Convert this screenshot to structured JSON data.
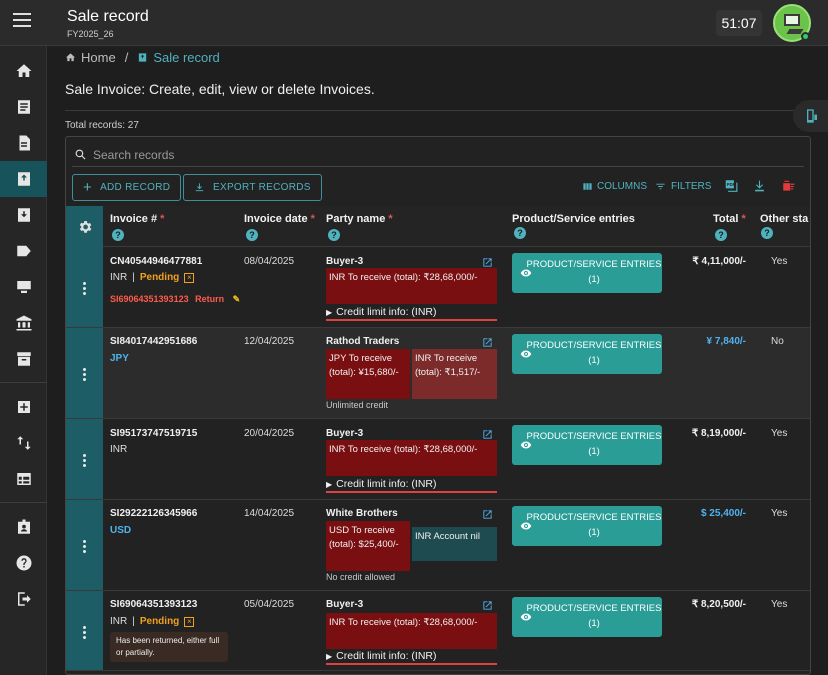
{
  "header": {
    "title": "Sale record",
    "subtitle": "FY2025_26",
    "clock": "51:07"
  },
  "breadcrumb": {
    "home": "Home",
    "sep": "/",
    "current": "Sale record"
  },
  "page": {
    "heading": "Sale Invoice: Create, edit, view or delete Invoices.",
    "total_records": "Total records: 27"
  },
  "search": {
    "placeholder": "Search records"
  },
  "actions": {
    "add": "ADD RECORD",
    "export": "EXPORT RECORDS",
    "columns": "COLUMNS",
    "filters": "FILTERS"
  },
  "columns": {
    "invoice": "Invoice #",
    "date": "Invoice date",
    "party": "Party name",
    "entries": "Product/Service entries",
    "total": "Total",
    "other": "Other sta",
    "required": "*",
    "help": "?"
  },
  "rows": [
    {
      "invoice": "CN40544946477881",
      "currency": "INR",
      "sep": "|",
      "status": "Pending",
      "ref": "SI69064351393123",
      "ref_type": "Return",
      "date": "08/04/2025",
      "party": "Buyer-3",
      "receive1": "INR To receive (total): ₹28,68,000/-",
      "credit_label": "Credit limit info: (INR)",
      "entries": "PRODUCT/SERVICE ENTRIES (1)",
      "total": "₹ 4,11,000/-",
      "other": "Yes"
    },
    {
      "invoice": "SI84017442951686",
      "currency": "JPY",
      "date": "12/04/2025",
      "party": "Rathod Traders",
      "receive1": "JPY To receive (total): ¥15,680/-",
      "receive2": "INR To receive (total): ₹1,517/-",
      "credit_note": "Unlimited credit",
      "entries": "PRODUCT/SERVICE ENTRIES (1)",
      "total": "¥ 7,840/-",
      "other": "No"
    },
    {
      "invoice": "SI95173747519715",
      "currency": "INR",
      "date": "20/04/2025",
      "party": "Buyer-3",
      "receive1": "INR To receive (total): ₹28,68,000/-",
      "credit_label": "Credit limit info: (INR)",
      "entries": "PRODUCT/SERVICE ENTRIES (1)",
      "total": "₹ 8,19,000/-",
      "other": "Yes"
    },
    {
      "invoice": "SI29222126345966",
      "currency": "USD",
      "date": "14/04/2025",
      "party": "White Brothers",
      "receive1": "USD To receive (total): $25,400/-",
      "receive2": "INR Account nil",
      "credit_note": "No credit allowed",
      "entries": "PRODUCT/SERVICE ENTRIES (1)",
      "total": "$ 25,400/-",
      "other": "Yes"
    },
    {
      "invoice": "SI69064351393123",
      "currency": "INR",
      "sep": "|",
      "status": "Pending",
      "tooltip": "Has been returned, either full or partially.",
      "date": "05/04/2025",
      "party": "Buyer-3",
      "receive1": "INR To receive (total): ₹28,68,000/-",
      "credit_label": "Credit limit info: (INR)",
      "entries": "PRODUCT/SERVICE ENTRIES (1)",
      "total": "₹ 8,20,500/-",
      "other": "Yes"
    }
  ],
  "colors": {
    "accent": "#4fb3bf",
    "handle": "#1d5e66",
    "button": "#2a9d97",
    "receive": "#7a0f12",
    "required": "#e05555",
    "pending": "#f0a020"
  }
}
